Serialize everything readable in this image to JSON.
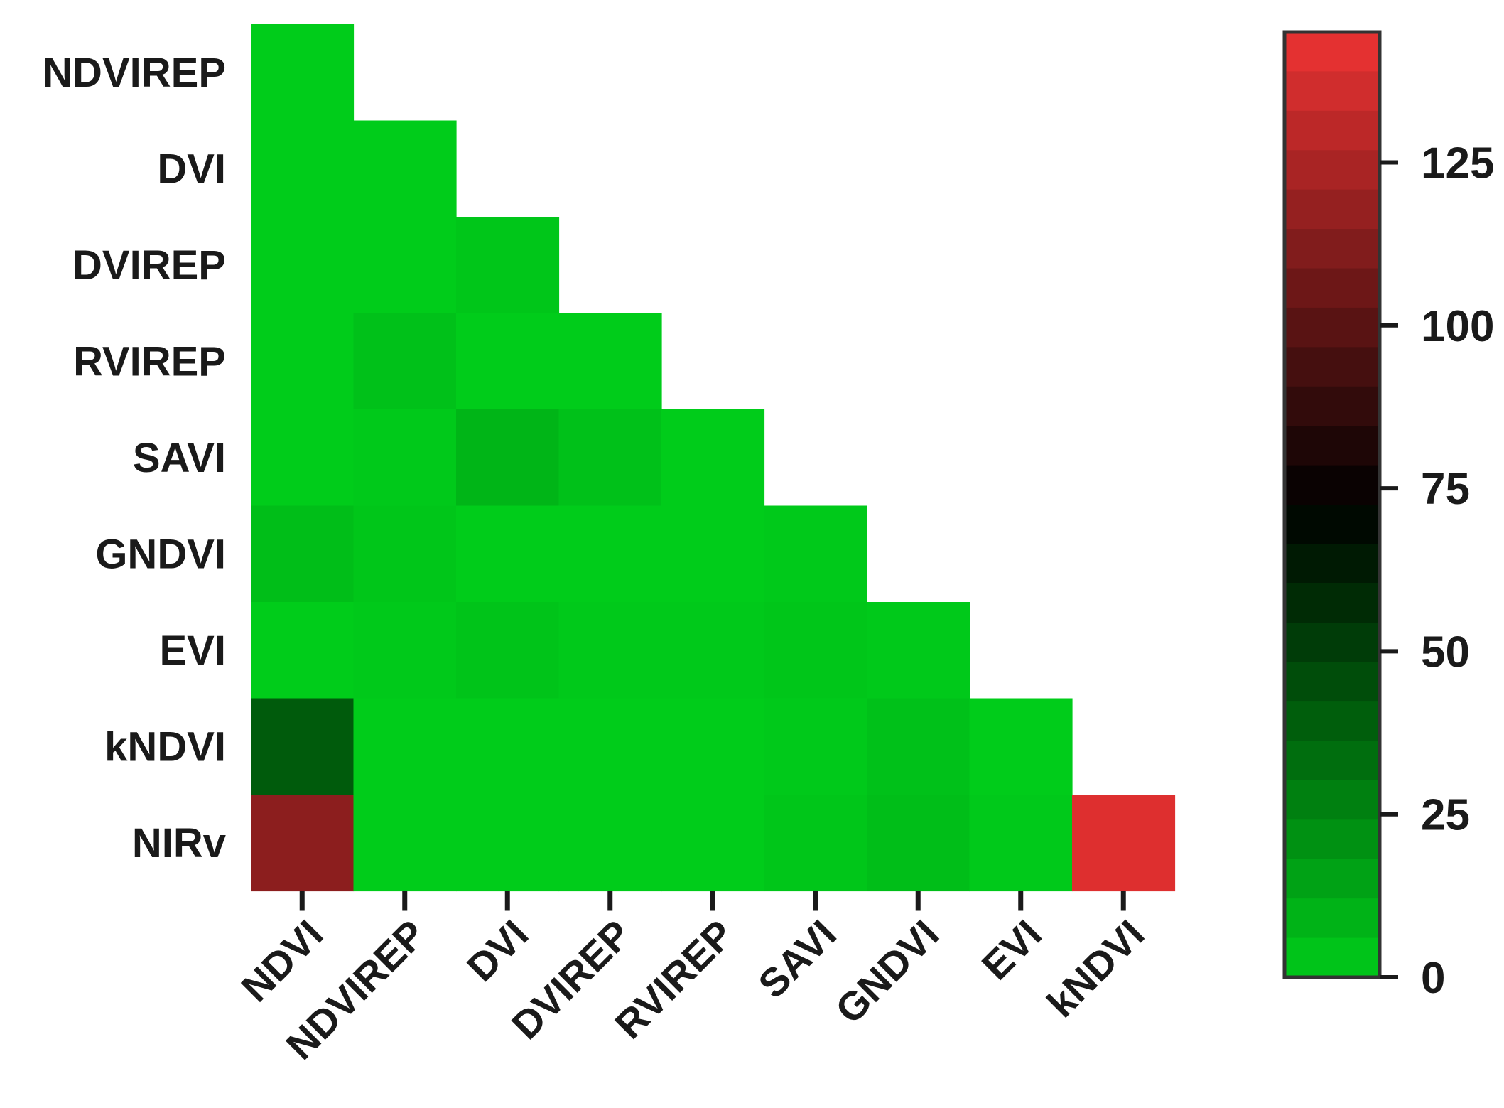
{
  "chart_data": {
    "type": "heatmap",
    "rows": [
      "NDVIREP",
      "DVI",
      "DVIREP",
      "RVIREP",
      "SAVI",
      "GNDVI",
      "EVI",
      "kNDVI",
      "NIRv"
    ],
    "columns": [
      "NDVI",
      "NDVIREP",
      "DVI",
      "DVIREP",
      "RVIREP",
      "SAVI",
      "GNDVI",
      "EVI",
      "kNDVI"
    ],
    "values": [
      [
        0
      ],
      [
        0,
        0
      ],
      [
        0,
        0,
        2
      ],
      [
        0,
        4,
        0,
        0
      ],
      [
        0,
        1,
        8,
        4,
        0
      ],
      [
        5,
        2,
        0,
        0,
        0,
        1
      ],
      [
        0,
        1,
        3,
        1,
        1,
        2,
        1
      ],
      [
        40,
        0,
        0,
        0,
        0,
        1,
        4,
        0
      ],
      [
        115,
        0,
        0,
        0,
        0,
        2,
        5,
        1,
        140
      ]
    ],
    "colorbar": {
      "min": 0,
      "max": 145,
      "ticks": [
        0,
        25,
        50,
        75,
        100,
        125
      ],
      "tick_labels": [
        "0",
        "25",
        "50",
        "75",
        "100",
        "125"
      ],
      "colors": {
        "low": "#00cc1a",
        "mid": "#000000",
        "high": "#ee3333"
      }
    },
    "title": "",
    "xlabel": "",
    "ylabel": ""
  }
}
